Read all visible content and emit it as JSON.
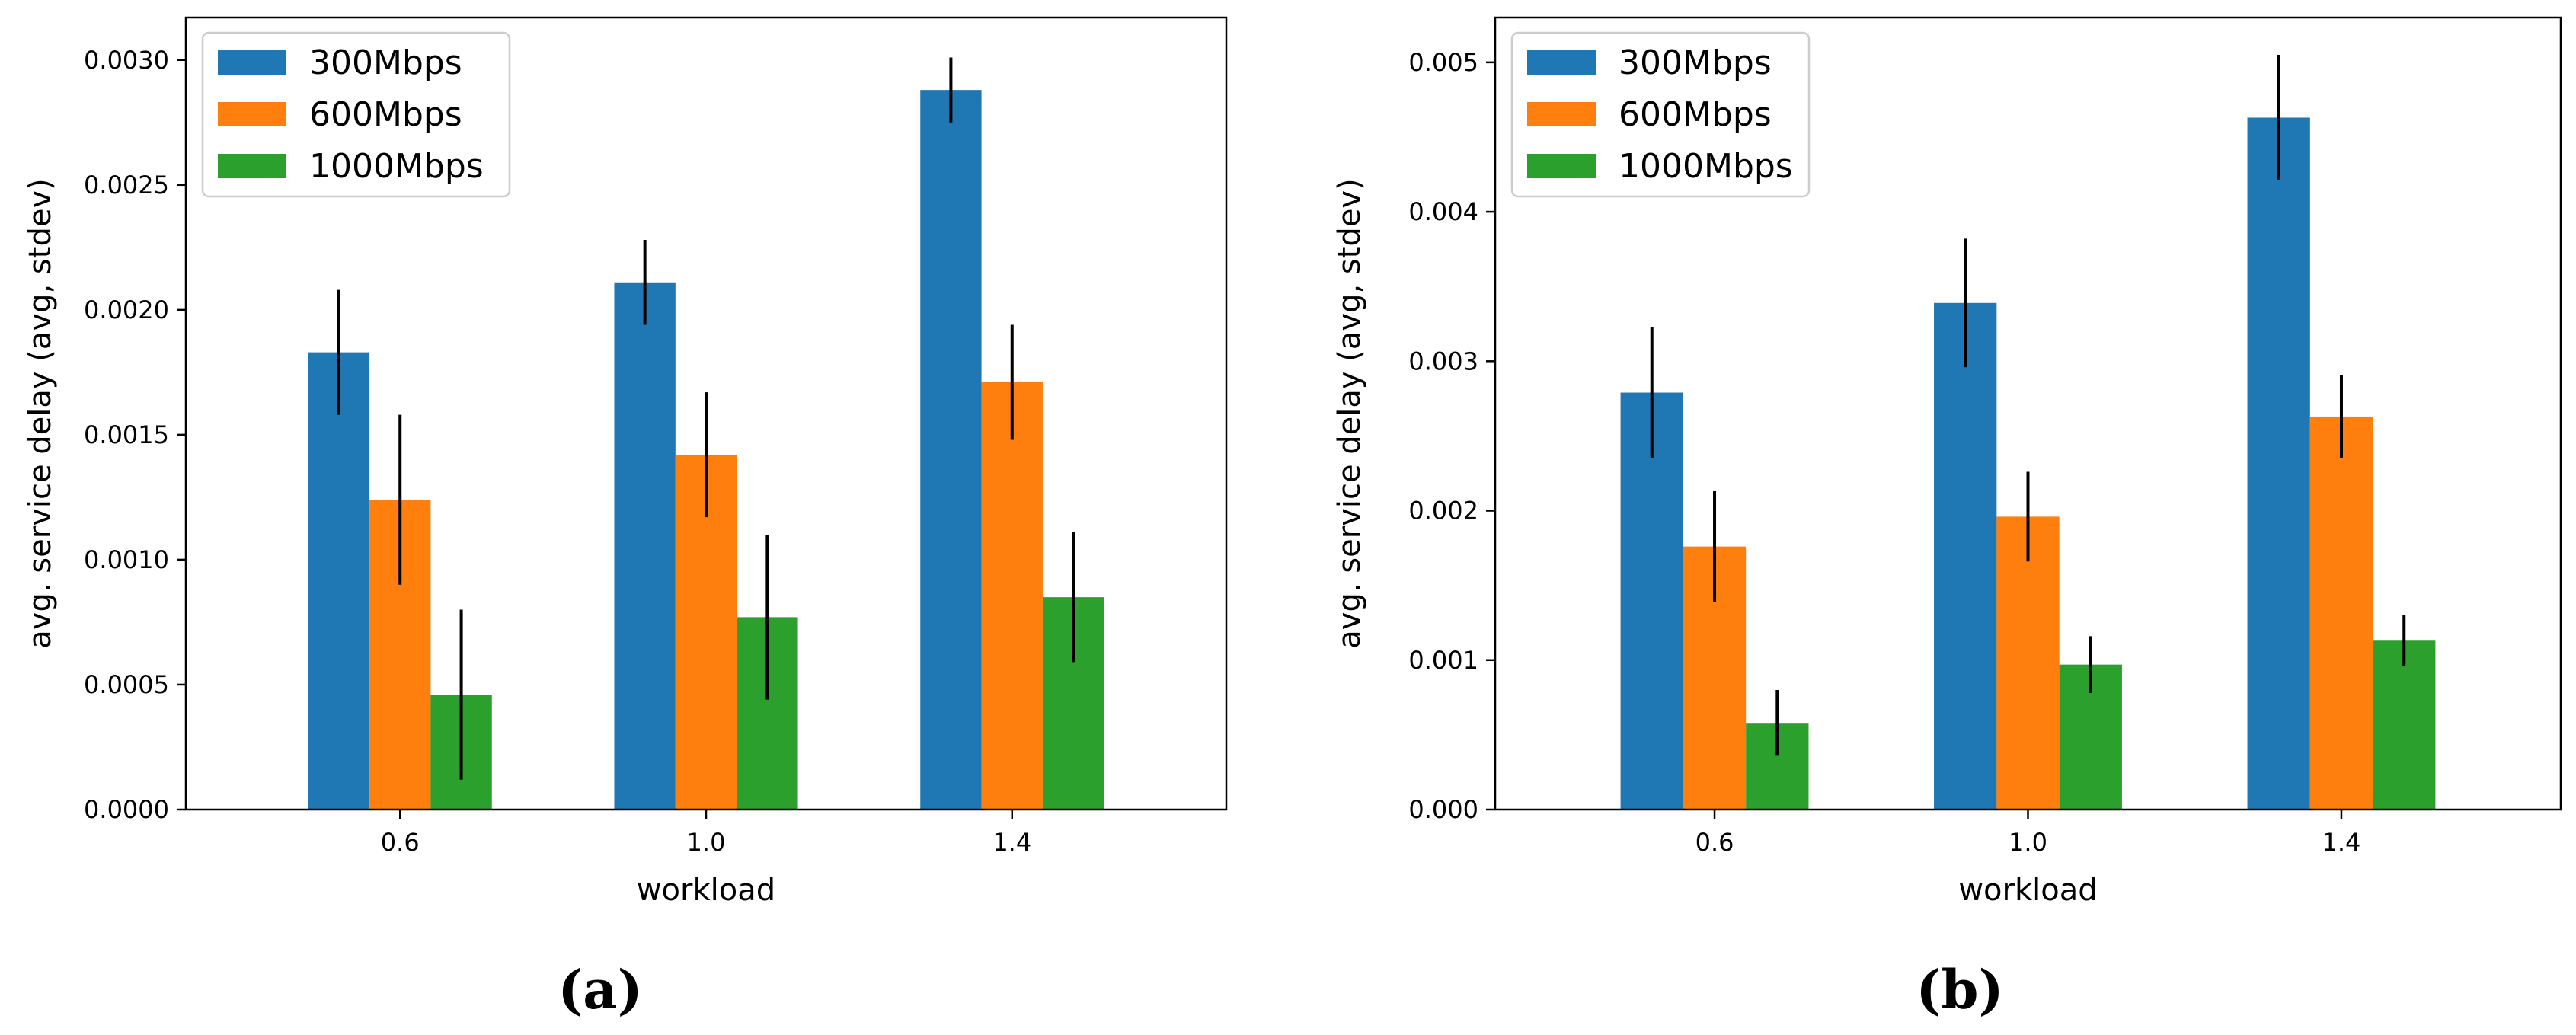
{
  "chart_data": [
    {
      "type": "bar",
      "panel_label": "(a)",
      "xlabel": "workload",
      "ylabel": "avg. service delay (avg, stdev)",
      "categories": [
        "0.6",
        "1.0",
        "1.4"
      ],
      "ylim": [
        0,
        0.00317
      ],
      "yticks": [
        0.0,
        0.0005,
        0.001,
        0.0015,
        0.002,
        0.0025,
        0.003
      ],
      "ytick_labels": [
        "0.0000",
        "0.0005",
        "0.0010",
        "0.0015",
        "0.0020",
        "0.0025",
        "0.0030"
      ],
      "legend_position": "top-left",
      "series": [
        {
          "name": "300Mbps",
          "color": "#1f77b4",
          "values": [
            0.00183,
            0.00211,
            0.00288
          ],
          "errors": [
            0.00025,
            0.00017,
            0.00013
          ]
        },
        {
          "name": "600Mbps",
          "color": "#ff7f0e",
          "values": [
            0.00124,
            0.00142,
            0.00171
          ],
          "errors": [
            0.00034,
            0.00025,
            0.00023
          ]
        },
        {
          "name": "1000Mbps",
          "color": "#2ca02c",
          "values": [
            0.00046,
            0.00077,
            0.00085
          ],
          "errors": [
            0.00034,
            0.00033,
            0.00026
          ]
        }
      ]
    },
    {
      "type": "bar",
      "panel_label": "(b)",
      "xlabel": "workload",
      "ylabel": "avg. service delay (avg, stdev)",
      "categories": [
        "0.6",
        "1.0",
        "1.4"
      ],
      "ylim": [
        0,
        0.0053
      ],
      "yticks": [
        0.0,
        0.001,
        0.002,
        0.003,
        0.004,
        0.005
      ],
      "ytick_labels": [
        "0.000",
        "0.001",
        "0.002",
        "0.003",
        "0.004",
        "0.005"
      ],
      "legend_position": "top-left",
      "series": [
        {
          "name": "300Mbps",
          "color": "#1f77b4",
          "values": [
            0.00279,
            0.00339,
            0.00463
          ],
          "errors": [
            0.00044,
            0.00043,
            0.00042
          ]
        },
        {
          "name": "600Mbps",
          "color": "#ff7f0e",
          "values": [
            0.00176,
            0.00196,
            0.00263
          ],
          "errors": [
            0.00037,
            0.0003,
            0.00028
          ]
        },
        {
          "name": "1000Mbps",
          "color": "#2ca02c",
          "values": [
            0.00058,
            0.00097,
            0.00113
          ],
          "errors": [
            0.00022,
            0.00019,
            0.00017
          ]
        }
      ]
    }
  ]
}
